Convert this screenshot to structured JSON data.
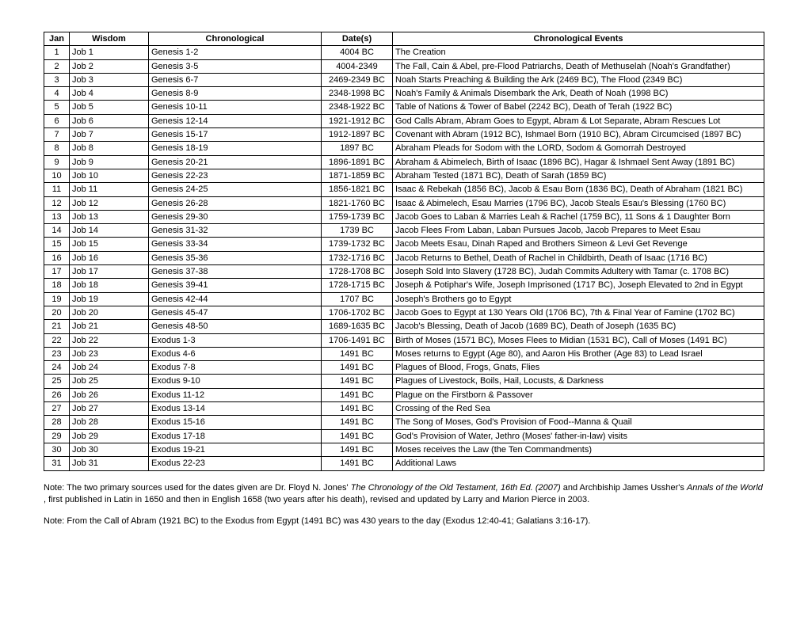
{
  "table": {
    "headers": {
      "jan": "Jan",
      "wisdom": "Wisdom",
      "chronological": "Chronological",
      "dates": "Date(s)",
      "events": "Chronological Events"
    },
    "rows": [
      {
        "n": "1",
        "wisdom": "Job 1",
        "chrono": "Genesis 1-2",
        "dates": "4004 BC",
        "events": "The Creation"
      },
      {
        "n": "2",
        "wisdom": "Job 2",
        "chrono": "Genesis 3-5",
        "dates": "4004-2349",
        "events": "The Fall, Cain & Abel, pre-Flood Patriarchs, Death of Methuselah (Noah's Grandfather)"
      },
      {
        "n": "3",
        "wisdom": "Job 3",
        "chrono": "Genesis 6-7",
        "dates": "2469-2349 BC",
        "events": "Noah Starts Preaching & Building the Ark (2469 BC), The Flood (2349 BC)"
      },
      {
        "n": "4",
        "wisdom": "Job 4",
        "chrono": "Genesis 8-9",
        "dates": "2348-1998 BC",
        "events": "Noah's Family & Animals Disembark the Ark, Death of Noah (1998 BC)"
      },
      {
        "n": "5",
        "wisdom": "Job 5",
        "chrono": "Genesis 10-11",
        "dates": "2348-1922 BC",
        "events": "Table of Nations & Tower of Babel (2242 BC), Death of Terah (1922 BC)"
      },
      {
        "n": "6",
        "wisdom": "Job 6",
        "chrono": "Genesis 12-14",
        "dates": "1921-1912 BC",
        "events": "God Calls Abram, Abram Goes to Egypt, Abram & Lot Separate, Abram Rescues Lot"
      },
      {
        "n": "7",
        "wisdom": "Job 7",
        "chrono": "Genesis 15-17",
        "dates": "1912-1897 BC",
        "events": "Covenant with Abram (1912 BC), Ishmael Born (1910 BC), Abram Circumcised (1897 BC)"
      },
      {
        "n": "8",
        "wisdom": "Job 8",
        "chrono": "Genesis 18-19",
        "dates": "1897 BC",
        "events": "Abraham Pleads for Sodom with the LORD, Sodom & Gomorrah Destroyed"
      },
      {
        "n": "9",
        "wisdom": "Job 9",
        "chrono": "Genesis 20-21",
        "dates": "1896-1891 BC",
        "events": "Abraham & Abimelech, Birth of Isaac (1896 BC), Hagar & Ishmael Sent Away (1891 BC)"
      },
      {
        "n": "10",
        "wisdom": "Job 10",
        "chrono": "Genesis 22-23",
        "dates": "1871-1859 BC",
        "events": "Abraham Tested (1871 BC), Death of Sarah (1859 BC)"
      },
      {
        "n": "11",
        "wisdom": "Job 11",
        "chrono": "Genesis 24-25",
        "dates": "1856-1821 BC",
        "events": "Isaac & Rebekah (1856 BC), Jacob & Esau Born (1836 BC), Death of Abraham (1821 BC)"
      },
      {
        "n": "12",
        "wisdom": "Job 12",
        "chrono": "Genesis 26-28",
        "dates": "1821-1760 BC",
        "events": "Isaac & Abimelech, Esau Marries (1796 BC), Jacob Steals Esau's Blessing (1760 BC)"
      },
      {
        "n": "13",
        "wisdom": "Job 13",
        "chrono": "Genesis 29-30",
        "dates": "1759-1739 BC",
        "events": "Jacob Goes to Laban & Marries Leah & Rachel (1759 BC), 11 Sons & 1 Daughter Born"
      },
      {
        "n": "14",
        "wisdom": "Job 14",
        "chrono": "Genesis 31-32",
        "dates": "1739 BC",
        "events": "Jacob Flees From Laban, Laban Pursues Jacob, Jacob Prepares to Meet Esau"
      },
      {
        "n": "15",
        "wisdom": "Job 15",
        "chrono": "Genesis 33-34",
        "dates": "1739-1732 BC",
        "events": "Jacob Meets Esau, Dinah Raped and Brothers Simeon & Levi Get Revenge"
      },
      {
        "n": "16",
        "wisdom": "Job 16",
        "chrono": "Genesis 35-36",
        "dates": "1732-1716 BC",
        "events": "Jacob Returns to Bethel, Death of Rachel in Childbirth, Death of Isaac (1716 BC)"
      },
      {
        "n": "17",
        "wisdom": "Job 17",
        "chrono": "Genesis 37-38",
        "dates": "1728-1708 BC",
        "events": "Joseph Sold Into Slavery (1728 BC), Judah Commits Adultery with Tamar (c. 1708 BC)"
      },
      {
        "n": "18",
        "wisdom": "Job 18",
        "chrono": "Genesis 39-41",
        "dates": "1728-1715 BC",
        "events": "Joseph & Potiphar's Wife, Joseph Imprisoned (1717 BC), Joseph Elevated to 2nd in Egypt"
      },
      {
        "n": "19",
        "wisdom": "Job 19",
        "chrono": "Genesis 42-44",
        "dates": "1707 BC",
        "events": "Joseph's Brothers go to Egypt"
      },
      {
        "n": "20",
        "wisdom": "Job 20",
        "chrono": "Genesis 45-47",
        "dates": "1706-1702 BC",
        "events": "Jacob Goes to Egypt at 130 Years Old (1706 BC), 7th & Final Year of Famine (1702 BC)"
      },
      {
        "n": "21",
        "wisdom": "Job 21",
        "chrono": "Genesis 48-50",
        "dates": "1689-1635 BC",
        "events": "Jacob's Blessing, Death of Jacob (1689 BC), Death of Joseph (1635 BC)"
      },
      {
        "n": "22",
        "wisdom": "Job 22",
        "chrono": "Exodus 1-3",
        "dates": "1706-1491 BC",
        "events": "Birth of Moses (1571 BC), Moses Flees to Midian (1531 BC), Call of Moses (1491 BC)"
      },
      {
        "n": "23",
        "wisdom": "Job 23",
        "chrono": "Exodus 4-6",
        "dates": "1491 BC",
        "events": "Moses returns to Egypt (Age 80), and Aaron His Brother (Age 83) to Lead Israel"
      },
      {
        "n": "24",
        "wisdom": "Job 24",
        "chrono": "Exodus 7-8",
        "dates": "1491 BC",
        "events": "Plagues of Blood, Frogs, Gnats, Flies"
      },
      {
        "n": "25",
        "wisdom": "Job 25",
        "chrono": "Exodus 9-10",
        "dates": "1491 BC",
        "events": "Plagues of Livestock, Boils, Hail, Locusts, & Darkness"
      },
      {
        "n": "26",
        "wisdom": "Job 26",
        "chrono": "Exodus 11-12",
        "dates": "1491 BC",
        "events": "Plague on the Firstborn & Passover"
      },
      {
        "n": "27",
        "wisdom": "Job 27",
        "chrono": "Exodus 13-14",
        "dates": "1491 BC",
        "events": "Crossing of the Red Sea"
      },
      {
        "n": "28",
        "wisdom": "Job 28",
        "chrono": "Exodus 15-16",
        "dates": "1491 BC",
        "events": "The Song of Moses, God's Provision of Food--Manna & Quail"
      },
      {
        "n": "29",
        "wisdom": "Job 29",
        "chrono": "Exodus 17-18",
        "dates": "1491 BC",
        "events": "God's Provision of Water, Jethro (Moses' father-in-law) visits"
      },
      {
        "n": "30",
        "wisdom": "Job 30",
        "chrono": "Exodus 19-21",
        "dates": "1491 BC",
        "events": "Moses receives the Law (the Ten Commandments)"
      },
      {
        "n": "31",
        "wisdom": "Job 31",
        "chrono": "Exodus 22-23",
        "dates": "1491 BC",
        "events": "Additional Laws"
      }
    ]
  },
  "notes": {
    "n1_a": "Note: The two primary sources used for the dates given are Dr. Floyd N. Jones' ",
    "n1_b": "The Chronology of the Old Testament, 16th Ed. (2007)",
    "n1_c": "  and Archbiship James Ussher's ",
    "n1_d": "Annals of the World",
    "n1_e": " , first published in Latin in 1650 and then in English 1658 (two years after his death), revised and updated by Larry and Marion Pierce in 2003.",
    "n2": "Note: From the Call of Abram (1921 BC) to the Exodus from Egypt (1491 BC) was 430 years to the day (Exodus 12:40-41; Galatians 3:16-17)."
  }
}
